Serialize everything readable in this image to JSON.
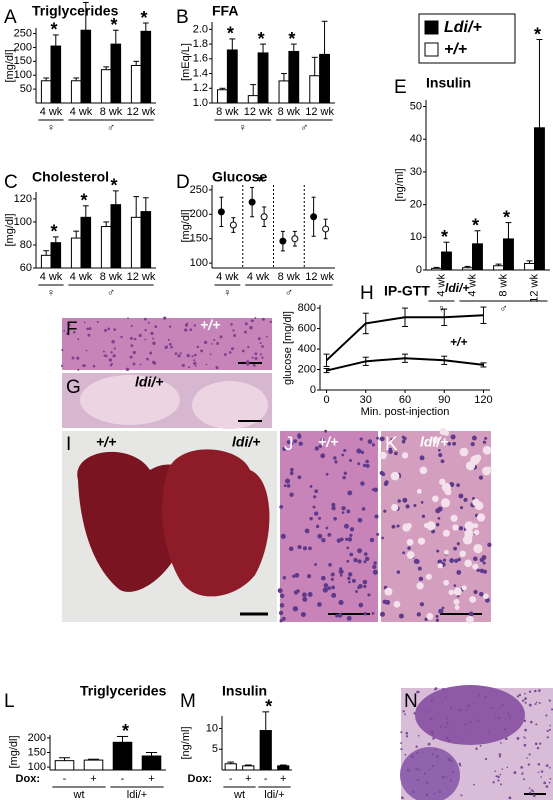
{
  "chart_data": [
    {
      "type": "bar",
      "panel": "A",
      "title": "Triglycerides",
      "ylabel": "[mg/dl]",
      "groups": [
        {
          "label": "♀",
          "categories": [
            "4 wk"
          ]
        },
        {
          "label": "♂",
          "categories": [
            "4 wk",
            "8 wk",
            "12 wk"
          ]
        }
      ],
      "series": [
        {
          "name": "+/+",
          "color": "#ffffff",
          "values": [
            80,
            80,
            120,
            135
          ],
          "errors": [
            10,
            10,
            10,
            15
          ]
        },
        {
          "name": "Ldi/+",
          "color": "#000000",
          "values": [
            205,
            262,
            212,
            258
          ],
          "errors": [
            40,
            100,
            50,
            30
          ]
        }
      ],
      "stars": [
        "*",
        "*",
        "*",
        "*"
      ],
      "ylim": [
        0,
        270
      ],
      "yticks": [
        50,
        100,
        150,
        200,
        250
      ]
    },
    {
      "type": "bar",
      "panel": "B",
      "title": "FFA",
      "ylabel": "[mEq/L]",
      "groups": [
        {
          "label": "♀",
          "categories": [
            "8 wk",
            "12 wk"
          ]
        },
        {
          "label": "♂",
          "categories": [
            "8 wk",
            "12 wk"
          ]
        }
      ],
      "series": [
        {
          "name": "+/+",
          "color": "#ffffff",
          "values": [
            1.18,
            1.1,
            1.3,
            1.37
          ],
          "errors": [
            0.02,
            0.15,
            0.1,
            0.25
          ]
        },
        {
          "name": "Ldi/+",
          "color": "#000000",
          "values": [
            1.72,
            1.68,
            1.7,
            1.66
          ],
          "errors": [
            0.15,
            0.12,
            0.1,
            0.45
          ]
        }
      ],
      "stars": [
        "*",
        "*",
        "*",
        null
      ],
      "ylim": [
        1,
        2.1
      ],
      "yticks": [
        {
          "value": 1,
          "label": "1.0"
        },
        1.2,
        1.4,
        1.6,
        1.8,
        {
          "value": 2,
          "label": "2.0"
        }
      ]
    },
    {
      "type": "bar",
      "panel": "C",
      "title": "Cholesterol",
      "ylabel": "[mg/dl]",
      "groups": [
        {
          "label": "♀",
          "categories": [
            "4 wk"
          ]
        },
        {
          "label": "♂",
          "categories": [
            "4 wk",
            "8 wk",
            "12 wk"
          ]
        }
      ],
      "series": [
        {
          "name": "+/+",
          "color": "#ffffff",
          "values": [
            71,
            86,
            96,
            104
          ],
          "errors": [
            4,
            6,
            4,
            18
          ]
        },
        {
          "name": "Ldi/+",
          "color": "#000000",
          "values": [
            82,
            104,
            115,
            109
          ],
          "errors": [
            5,
            10,
            12,
            12
          ]
        }
      ],
      "stars": [
        "*",
        "*",
        "*",
        null
      ],
      "ylim": [
        60,
        126
      ],
      "yticks": [
        60,
        80,
        100,
        120
      ]
    },
    {
      "type": "dot",
      "panel": "D",
      "title": "Glucose",
      "ylabel": "[mg/dl]",
      "groups": [
        {
          "label": "♀",
          "categories": [
            "4 wk"
          ]
        },
        {
          "label": "♂",
          "categories": [
            "4 wk",
            "8 wk",
            "12 wk"
          ]
        }
      ],
      "series": [
        {
          "name": "+/+",
          "color": "#ffffff",
          "values": [
            178,
            195,
            150,
            170
          ],
          "errors": [
            15,
            20,
            15,
            20
          ]
        },
        {
          "name": "Ldi/+",
          "color": "#000000",
          "values": [
            205,
            225,
            145,
            195
          ],
          "errors": [
            30,
            30,
            20,
            40
          ]
        }
      ],
      "stars": [
        null,
        "*",
        null,
        null
      ],
      "ylim": [
        90,
        260
      ],
      "yticks": [
        100,
        150,
        200,
        250
      ]
    },
    {
      "type": "bar",
      "panel": "E",
      "title": "Insulin",
      "ylabel": "[ng/ml]",
      "legend": true,
      "groups": [
        {
          "label": "♀",
          "categories": [
            "4 wk"
          ]
        },
        {
          "label": "♂",
          "categories": [
            "4 wk",
            "8 wk",
            "12 wk"
          ]
        }
      ],
      "series": [
        {
          "name": "+/+",
          "color": "#ffffff",
          "values": [
            0.5,
            0.7,
            1.3,
            2
          ],
          "errors": [
            0.3,
            0.4,
            0.5,
            0.8
          ]
        },
        {
          "name": "Ldi/+",
          "color": "#000000",
          "values": [
            5.5,
            8,
            9.5,
            43.5
          ],
          "errors": [
            3,
            4,
            5,
            27
          ]
        }
      ],
      "stars": [
        "*",
        "*",
        "*",
        "*"
      ],
      "ylim": [
        0,
        52
      ],
      "yticks": [
        0,
        10,
        20,
        30,
        40,
        50
      ]
    },
    {
      "type": "line",
      "panel": "H",
      "title": "IP-GTT",
      "ylabel": "glucose [mg/dl]",
      "xlabel": "Min. post-injection",
      "x": [
        0,
        30,
        60,
        90,
        120
      ],
      "series": [
        {
          "name": "ldi/+",
          "color": "#000000",
          "values": [
            290,
            650,
            710,
            710,
            730
          ],
          "errors": [
            60,
            100,
            90,
            80,
            80
          ]
        },
        {
          "name": "+/+",
          "color": "#000000",
          "values": [
            190,
            280,
            310,
            290,
            245
          ],
          "errors": [
            20,
            40,
            40,
            40,
            20
          ]
        }
      ],
      "xlim": [
        -5,
        125
      ],
      "xticks": [
        0,
        30,
        60,
        90,
        120
      ],
      "ylim": [
        0,
        830
      ],
      "yticks": [
        0,
        200,
        400,
        600,
        800
      ]
    },
    {
      "type": "bar",
      "panel": "L",
      "title": "Triglycerides",
      "ylabel": "[mg/dl]",
      "category_axis_label": "Dox:",
      "groups": [
        {
          "label": "wt",
          "categories": [
            "-",
            "+"
          ]
        },
        {
          "label": "ldi/+",
          "categories": [
            "-",
            "+"
          ]
        }
      ],
      "series": [
        {
          "colors": [
            "#ffffff",
            "#ffffff",
            "#000000",
            "#000000"
          ],
          "values": [
            122,
            124,
            185,
            138
          ],
          "errors": [
            10,
            3,
            20,
            12
          ]
        }
      ],
      "stars": [
        null,
        null,
        "*",
        null
      ],
      "ylim": [
        90,
        210
      ],
      "yticks": [
        100,
        150,
        200
      ]
    },
    {
      "type": "bar",
      "panel": "M",
      "title": "Insulin",
      "ylabel": "[ng/ml]",
      "category_axis_label": "Dox:",
      "groups": [
        {
          "label": "wt",
          "categories": [
            "-",
            "+"
          ]
        },
        {
          "label": "ldi/+",
          "categories": [
            "-",
            "+"
          ]
        }
      ],
      "series": [
        {
          "colors": [
            "#ffffff",
            "#ffffff",
            "#000000",
            "#000000"
          ],
          "values": [
            1.5,
            1,
            9.5,
            1
          ],
          "errors": [
            0.4,
            0.2,
            4.5,
            0.2
          ]
        }
      ],
      "stars": [
        null,
        null,
        "*",
        null
      ],
      "ylim": [
        0,
        13
      ],
      "yticks": [
        5,
        10
      ]
    }
  ],
  "image_panels": [
    {
      "panel": "F",
      "labels": [
        "+/+"
      ]
    },
    {
      "panel": "G",
      "labels": [
        "ldi/+"
      ]
    },
    {
      "panel": "I",
      "labels": [
        "+/+",
        "ldi/+"
      ]
    },
    {
      "panel": "J",
      "labels": [
        "+/+"
      ]
    },
    {
      "panel": "K",
      "labels": [
        "ldi/+"
      ]
    },
    {
      "panel": "N"
    }
  ]
}
